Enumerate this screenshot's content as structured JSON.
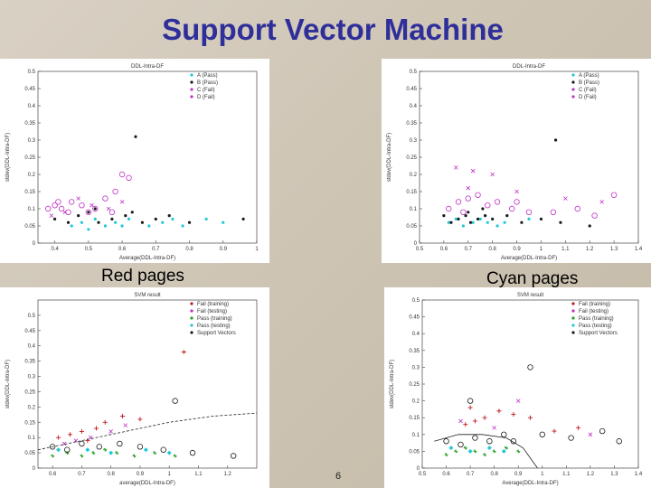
{
  "slide": {
    "title": "Support Vector Machine",
    "page_number": "6"
  },
  "labels": {
    "left": "Red pages",
    "right": "Cyan pages"
  },
  "colors": {
    "title": "#2f2f9a",
    "cyan": "#20c8d8",
    "magenta": "#c030c8",
    "dark": "#1a1a1a",
    "red": "#c01820",
    "green": "#20a020"
  },
  "chart_data": [
    {
      "type": "scatter",
      "title": "DDL-Intra-DF",
      "xlabel": "Average(DDL-Intra-DF)",
      "ylabel": "stdev(DDL-Intra-DF)",
      "x_ticks": [
        "0.4",
        "0.5",
        "0.6",
        "0.7",
        "0.8",
        "0.9",
        "1"
      ],
      "y_ticks": [
        "0",
        "0.05",
        "0.1",
        "0.15",
        "0.2",
        "0.25",
        "0.3",
        "0.35",
        "0.4",
        "0.45",
        "0.5"
      ],
      "xlim": [
        0.35,
        1.0
      ],
      "ylim": [
        0,
        0.5
      ],
      "legend": [
        "A (Pass)",
        "B (Pass)",
        "C (Fail)",
        "D (Fail)"
      ],
      "legend_position": "top-right",
      "series": [
        {
          "name": "A (Pass)",
          "marker": "dot",
          "color": "cyan",
          "points": [
            [
              0.45,
              0.05
            ],
            [
              0.48,
              0.06
            ],
            [
              0.52,
              0.07
            ],
            [
              0.55,
              0.05
            ],
            [
              0.58,
              0.06
            ],
            [
              0.62,
              0.07
            ],
            [
              0.68,
              0.05
            ],
            [
              0.72,
              0.06
            ],
            [
              0.78,
              0.05
            ],
            [
              0.85,
              0.07
            ],
            [
              0.9,
              0.06
            ],
            [
              0.5,
              0.04
            ],
            [
              0.6,
              0.05
            ],
            [
              0.75,
              0.07
            ]
          ]
        },
        {
          "name": "B (Pass)",
          "marker": "dot",
          "color": "dark",
          "points": [
            [
              0.4,
              0.07
            ],
            [
              0.44,
              0.06
            ],
            [
              0.47,
              0.08
            ],
            [
              0.5,
              0.09
            ],
            [
              0.53,
              0.06
            ],
            [
              0.57,
              0.07
            ],
            [
              0.61,
              0.08
            ],
            [
              0.63,
              0.09
            ],
            [
              0.66,
              0.06
            ],
            [
              0.7,
              0.07
            ],
            [
              0.74,
              0.08
            ],
            [
              0.8,
              0.06
            ],
            [
              0.96,
              0.07
            ],
            [
              0.52,
              0.1
            ],
            [
              0.64,
              0.31
            ]
          ]
        },
        {
          "name": "C (Fail)",
          "marker": "circle",
          "color": "magenta",
          "points": [
            [
              0.38,
              0.1
            ],
            [
              0.4,
              0.11
            ],
            [
              0.42,
              0.1
            ],
            [
              0.45,
              0.12
            ],
            [
              0.48,
              0.11
            ],
            [
              0.52,
              0.1
            ],
            [
              0.55,
              0.13
            ],
            [
              0.58,
              0.15
            ],
            [
              0.6,
              0.2
            ],
            [
              0.62,
              0.19
            ],
            [
              0.5,
              0.09
            ],
            [
              0.44,
              0.09
            ],
            [
              0.57,
              0.09
            ],
            [
              0.41,
              0.12
            ]
          ]
        },
        {
          "name": "D (Fail)",
          "marker": "x",
          "color": "magenta",
          "points": [
            [
              0.39,
              0.08
            ],
            [
              0.43,
              0.09
            ],
            [
              0.47,
              0.13
            ],
            [
              0.51,
              0.11
            ],
            [
              0.56,
              0.1
            ],
            [
              0.6,
              0.12
            ]
          ]
        }
      ]
    },
    {
      "type": "scatter",
      "title": "DDL-Intra-DF",
      "xlabel": "Average(DDL-Intra-DF)",
      "ylabel": "stdev(DDL-Intra-DF)",
      "x_ticks": [
        "0.5",
        "0.6",
        "0.7",
        "0.8",
        "0.9",
        "1",
        "1.1",
        "1.2",
        "1.3",
        "1.4"
      ],
      "y_ticks": [
        "0",
        "0.05",
        "0.1",
        "0.15",
        "0.2",
        "0.25",
        "0.3",
        "0.35",
        "0.4",
        "0.45",
        "0.5"
      ],
      "xlim": [
        0.5,
        1.4
      ],
      "ylim": [
        0,
        0.5
      ],
      "legend": [
        "A (Pass)",
        "B (Pass)",
        "C (Fail)",
        "D (Fail)"
      ],
      "legend_position": "top-right",
      "series": [
        {
          "name": "A (Pass)",
          "marker": "dot",
          "color": "cyan",
          "points": [
            [
              0.62,
              0.06
            ],
            [
              0.65,
              0.07
            ],
            [
              0.68,
              0.05
            ],
            [
              0.72,
              0.06
            ],
            [
              0.75,
              0.07
            ],
            [
              0.78,
              0.06
            ],
            [
              0.82,
              0.05
            ],
            [
              0.85,
              0.06
            ],
            [
              0.95,
              0.07
            ]
          ]
        },
        {
          "name": "B (Pass)",
          "marker": "dot",
          "color": "dark",
          "points": [
            [
              0.6,
              0.08
            ],
            [
              0.63,
              0.06
            ],
            [
              0.66,
              0.07
            ],
            [
              0.69,
              0.08
            ],
            [
              0.71,
              0.06
            ],
            [
              0.74,
              0.07
            ],
            [
              0.77,
              0.08
            ],
            [
              0.8,
              0.07
            ],
            [
              0.86,
              0.08
            ],
            [
              0.92,
              0.06
            ],
            [
              1.0,
              0.07
            ],
            [
              1.08,
              0.06
            ],
            [
              1.2,
              0.05
            ],
            [
              0.7,
              0.09
            ],
            [
              0.76,
              0.1
            ],
            [
              1.06,
              0.3
            ]
          ]
        },
        {
          "name": "C (Fail)",
          "marker": "circle",
          "color": "magenta",
          "points": [
            [
              0.62,
              0.1
            ],
            [
              0.66,
              0.12
            ],
            [
              0.7,
              0.13
            ],
            [
              0.74,
              0.14
            ],
            [
              0.78,
              0.11
            ],
            [
              0.82,
              0.12
            ],
            [
              0.88,
              0.1
            ],
            [
              0.95,
              0.09
            ],
            [
              1.05,
              0.09
            ],
            [
              1.15,
              0.1
            ],
            [
              1.22,
              0.08
            ],
            [
              1.3,
              0.14
            ],
            [
              0.68,
              0.09
            ],
            [
              0.9,
              0.12
            ]
          ]
        },
        {
          "name": "D (Fail)",
          "marker": "x",
          "color": "magenta",
          "points": [
            [
              0.65,
              0.22
            ],
            [
              0.72,
              0.21
            ],
            [
              0.8,
              0.2
            ],
            [
              0.9,
              0.15
            ],
            [
              1.1,
              0.13
            ],
            [
              1.25,
              0.12
            ],
            [
              0.7,
              0.16
            ]
          ]
        }
      ]
    },
    {
      "type": "scatter",
      "title": "SVM result",
      "xlabel": "average(DDL-Intra-DF)",
      "ylabel": "stdev(DDL-Intra-DF)",
      "x_ticks": [
        "0.6",
        "0.7",
        "0.8",
        "0.9",
        "1",
        "1.1",
        "1.2"
      ],
      "y_ticks": [
        "0",
        "0.05",
        "0.1",
        "0.15",
        "0.2",
        "0.25",
        "0.3",
        "0.35",
        "0.4",
        "0.45",
        "0.5"
      ],
      "xlim": [
        0.55,
        1.3
      ],
      "ylim": [
        0,
        0.55
      ],
      "legend": [
        "Fail (training)",
        "Fail (testing)",
        "Pass (training)",
        "Pass (testing)",
        "Support Vectors"
      ],
      "legend_position": "top-right",
      "series": [
        {
          "name": "Fail (training)",
          "marker": "plus",
          "color": "red",
          "points": [
            [
              0.62,
              0.1
            ],
            [
              0.66,
              0.11
            ],
            [
              0.7,
              0.12
            ],
            [
              0.75,
              0.13
            ],
            [
              0.78,
              0.15
            ],
            [
              0.84,
              0.17
            ],
            [
              0.9,
              0.16
            ],
            [
              1.05,
              0.38
            ],
            [
              0.72,
              0.09
            ]
          ]
        },
        {
          "name": "Fail (testing)",
          "marker": "x",
          "color": "magenta",
          "points": [
            [
              0.64,
              0.08
            ],
            [
              0.68,
              0.09
            ],
            [
              0.73,
              0.1
            ],
            [
              0.8,
              0.12
            ],
            [
              0.85,
              0.14
            ]
          ]
        },
        {
          "name": "Pass (training)",
          "marker": "star",
          "color": "green",
          "points": [
            [
              0.6,
              0.04
            ],
            [
              0.65,
              0.05
            ],
            [
              0.7,
              0.04
            ],
            [
              0.74,
              0.05
            ],
            [
              0.78,
              0.06
            ],
            [
              0.82,
              0.05
            ],
            [
              0.88,
              0.04
            ],
            [
              0.95,
              0.05
            ],
            [
              1.02,
              0.04
            ]
          ]
        },
        {
          "name": "Pass (testing)",
          "marker": "diamond",
          "color": "cyan",
          "points": [
            [
              0.62,
              0.06
            ],
            [
              0.72,
              0.06
            ],
            [
              0.8,
              0.05
            ],
            [
              0.92,
              0.06
            ],
            [
              1.0,
              0.05
            ]
          ]
        },
        {
          "name": "Support Vectors",
          "marker": "circle",
          "color": "dark",
          "points": [
            [
              0.6,
              0.07
            ],
            [
              0.65,
              0.06
            ],
            [
              0.7,
              0.08
            ],
            [
              0.76,
              0.07
            ],
            [
              0.83,
              0.08
            ],
            [
              0.9,
              0.07
            ],
            [
              0.98,
              0.06
            ],
            [
              1.08,
              0.05
            ],
            [
              1.22,
              0.04
            ],
            [
              1.02,
              0.22
            ]
          ]
        }
      ],
      "boundary": [
        [
          0.55,
          0.06
        ],
        [
          0.7,
          0.09
        ],
        [
          0.85,
          0.12
        ],
        [
          1.0,
          0.15
        ],
        [
          1.15,
          0.17
        ],
        [
          1.3,
          0.18
        ]
      ]
    },
    {
      "type": "scatter",
      "title": "SVM result",
      "xlabel": "Average(DDL-Intra-DF)",
      "ylabel": "stdev(DDL-Intra-DF)",
      "x_ticks": [
        "0.5",
        "0.6",
        "0.7",
        "0.8",
        "0.9",
        "1",
        "1.1",
        "1.2",
        "1.3",
        "1.4"
      ],
      "y_ticks": [
        "0",
        "0.05",
        "0.1",
        "0.15",
        "0.2",
        "0.25",
        "0.3",
        "0.35",
        "0.4",
        "0.45",
        "0.5"
      ],
      "xlim": [
        0.5,
        1.4
      ],
      "ylim": [
        0,
        0.5
      ],
      "legend": [
        "Fail (training)",
        "Fail (testing)",
        "Pass (training)",
        "Pass (testing)",
        "Support Vectors"
      ],
      "legend_position": "top-right",
      "series": [
        {
          "name": "Fail (training)",
          "marker": "plus",
          "color": "red",
          "points": [
            [
              0.68,
              0.13
            ],
            [
              0.72,
              0.14
            ],
            [
              0.76,
              0.15
            ],
            [
              0.82,
              0.17
            ],
            [
              0.88,
              0.16
            ],
            [
              0.95,
              0.15
            ],
            [
              1.05,
              0.11
            ],
            [
              1.15,
              0.12
            ],
            [
              0.7,
              0.18
            ]
          ]
        },
        {
          "name": "Fail (testing)",
          "marker": "x",
          "color": "magenta",
          "points": [
            [
              0.66,
              0.14
            ],
            [
              0.8,
              0.12
            ],
            [
              0.9,
              0.2
            ],
            [
              1.2,
              0.1
            ]
          ]
        },
        {
          "name": "Pass (training)",
          "marker": "star",
          "color": "green",
          "points": [
            [
              0.6,
              0.04
            ],
            [
              0.64,
              0.05
            ],
            [
              0.68,
              0.06
            ],
            [
              0.72,
              0.05
            ],
            [
              0.76,
              0.04
            ],
            [
              0.8,
              0.05
            ],
            [
              0.85,
              0.06
            ],
            [
              0.9,
              0.05
            ]
          ]
        },
        {
          "name": "Pass (testing)",
          "marker": "diamond",
          "color": "cyan",
          "points": [
            [
              0.62,
              0.06
            ],
            [
              0.7,
              0.05
            ],
            [
              0.78,
              0.06
            ],
            [
              0.84,
              0.05
            ]
          ]
        },
        {
          "name": "Support Vectors",
          "marker": "circle",
          "color": "dark",
          "points": [
            [
              0.6,
              0.08
            ],
            [
              0.66,
              0.07
            ],
            [
              0.72,
              0.09
            ],
            [
              0.78,
              0.08
            ],
            [
              0.84,
              0.1
            ],
            [
              0.88,
              0.08
            ],
            [
              0.95,
              0.3
            ],
            [
              1.0,
              0.1
            ],
            [
              1.12,
              0.09
            ],
            [
              1.25,
              0.11
            ],
            [
              1.32,
              0.08
            ],
            [
              0.7,
              0.2
            ]
          ]
        }
      ],
      "boundary": [
        [
          0.55,
          0.08
        ],
        [
          0.65,
          0.1
        ],
        [
          0.75,
          0.1
        ],
        [
          0.85,
          0.09
        ],
        [
          0.92,
          0.06
        ],
        [
          0.98,
          0.0
        ]
      ]
    }
  ]
}
